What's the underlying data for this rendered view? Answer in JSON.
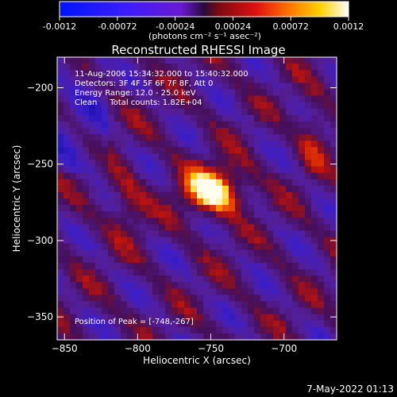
{
  "colorbar": {
    "ticks": [
      "-0.0012",
      "-0.00072",
      "-0.00024",
      "0.00024",
      "0.00072",
      "0.0012"
    ],
    "unit_label": "(photons cm⁻² s⁻¹ asec⁻²)",
    "range": [
      -0.0012,
      0.0012
    ]
  },
  "chart_data": {
    "type": "heatmap",
    "title": "Reconstructed RHESSI Image",
    "xlabel": "Heliocentric X (arcsec)",
    "ylabel": "Heliocentric Y (arcsec)",
    "xlim": [
      -855,
      -664
    ],
    "ylim": [
      -365,
      -180
    ],
    "xticks": [
      -850,
      -800,
      -750,
      -700
    ],
    "yticks": [
      -200,
      -250,
      -300,
      -350
    ],
    "annotations": [
      "11-Aug-2006 15:34:32.000 to 15:40:32.000",
      "Detectors: 3F 4F 5F 6F 7F 8F, Att 0",
      "Energy Range: 12.0 - 25.0 keV",
      "Clean     Total counts: 1.82E+04"
    ],
    "peak_label": "Position of Peak = [-748,-267]",
    "peak": [
      -748,
      -267
    ],
    "colormap": "RHESSI blue-purple-red-yellow-white",
    "value_range": [
      -0.0012,
      0.0012
    ]
  },
  "timestamp": "7-May-2022 01:13"
}
